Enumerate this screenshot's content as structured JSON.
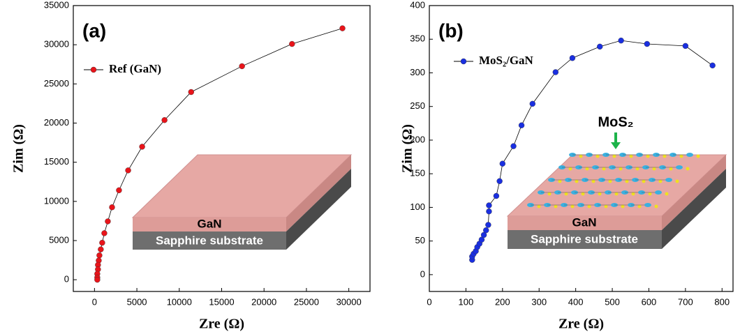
{
  "chart_data": [
    {
      "type": "line",
      "panel_label": "(a)",
      "xlabel": "Zre (Ω)",
      "ylabel": "Zim (Ω)",
      "xlim": [
        -2500,
        32500
      ],
      "ylim": [
        -1500,
        35000
      ],
      "xticks": [
        0,
        5000,
        10000,
        15000,
        20000,
        25000,
        30000
      ],
      "yticks": [
        0,
        5000,
        10000,
        15000,
        20000,
        25000,
        30000,
        35000
      ],
      "x": [
        29250,
        23300,
        17400,
        11400,
        8260,
        5620,
        3970,
        2890,
        2070,
        1570,
        1160,
        910,
        740,
        580,
        500,
        410,
        410,
        330,
        330,
        330
      ],
      "series": [
        {
          "name": "Ref (GaN)",
          "color": "#e8141a",
          "values": [
            32100,
            30100,
            27260,
            23960,
            20380,
            16980,
            13960,
            11420,
            9250,
            7450,
            5940,
            4720,
            3870,
            3110,
            2450,
            1890,
            1320,
            750,
            280,
            0
          ]
        }
      ],
      "inset_labels": [
        "GaN",
        "Sapphire substrate"
      ]
    },
    {
      "type": "line",
      "panel_label": "(b)",
      "xlabel": "Zre (Ω)",
      "ylabel": "Zim (Ω)",
      "xlim": [
        0,
        830
      ],
      "ylim": [
        -25,
        400
      ],
      "xticks": [
        0,
        100,
        200,
        300,
        400,
        500,
        600,
        700,
        800
      ],
      "yticks": [
        0,
        50,
        100,
        150,
        200,
        250,
        300,
        350,
        400
      ],
      "x": [
        117,
        117,
        121,
        127,
        131,
        137,
        143,
        149,
        155,
        161,
        163,
        163,
        183,
        192,
        200,
        230,
        252,
        282,
        345,
        391,
        466,
        524,
        595,
        700,
        774
      ],
      "series": [
        {
          "name": "MoS₂/GaN",
          "color": "#1a2fe0",
          "values": [
            22,
            27,
            31,
            35,
            41,
            46,
            52,
            59,
            66,
            74,
            94,
            103,
            117,
            139,
            165,
            191,
            222,
            254,
            301,
            322,
            339,
            348,
            343,
            340,
            311
          ]
        }
      ],
      "inset_labels": [
        "GaN",
        "Sapphire substrate",
        "MoS₂"
      ]
    }
  ]
}
